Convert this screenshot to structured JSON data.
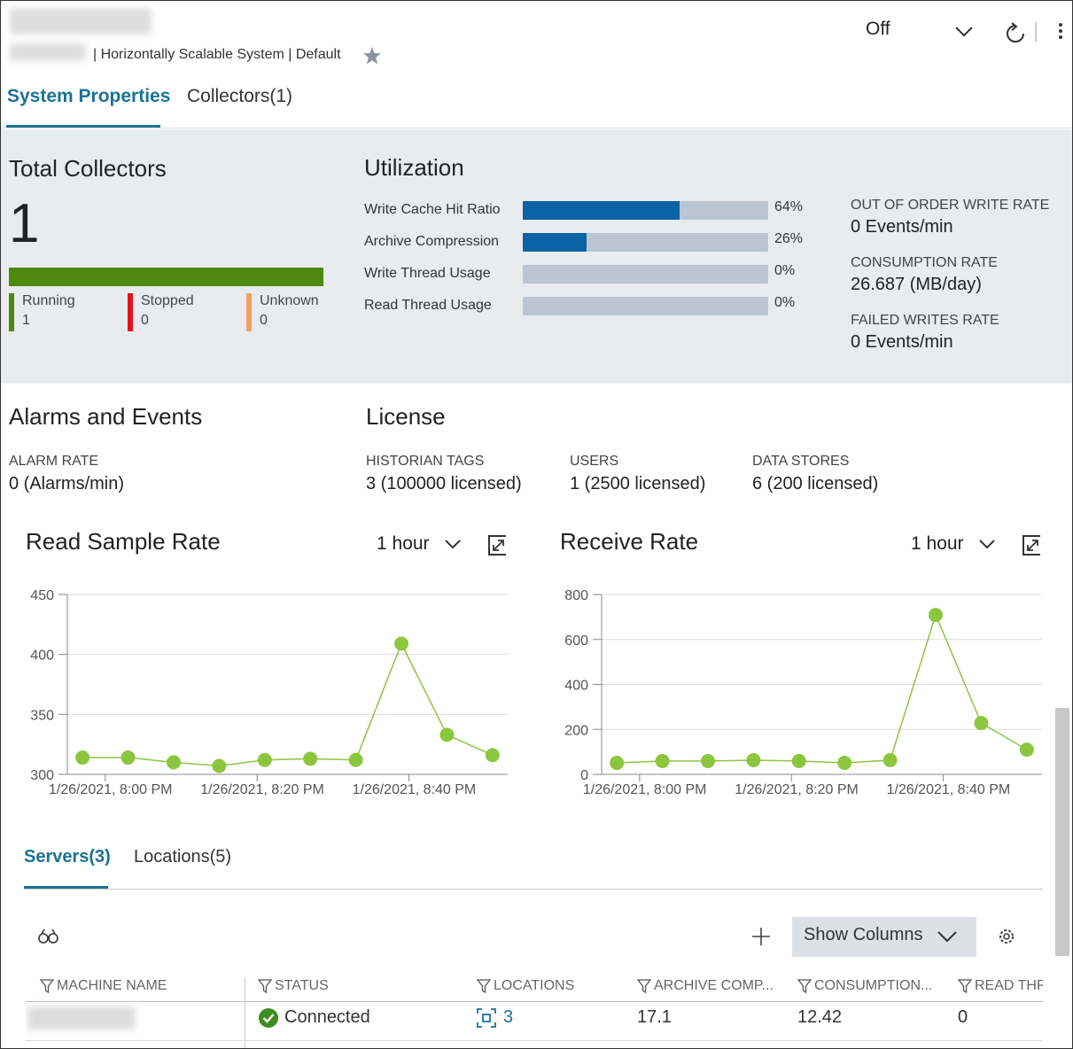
{
  "header": {
    "subtitle": "| Horizontally Scalable System | Default",
    "mode": "Off"
  },
  "tabs": [
    "System Properties",
    "Collectors(1)"
  ],
  "total_collectors": {
    "title": "Total Collectors",
    "count": 1,
    "color": "#4f8a10",
    "statuses": [
      {
        "name": "Running",
        "value": 1,
        "color": "#4f8a10"
      },
      {
        "name": "Stopped",
        "value": 0,
        "color": "#e0141e"
      },
      {
        "name": "Unknown",
        "value": 0,
        "color": "#f5a05a"
      }
    ]
  },
  "utilization": {
    "title": "Utilization",
    "color": "#0b62a4",
    "bars": [
      {
        "name": "Write Cache Hit Ratio",
        "value": 64,
        "value_label": "64%"
      },
      {
        "name": "Archive Compression",
        "value": 26,
        "value_label": "26%"
      },
      {
        "name": "Write Thread Usage",
        "value": 0,
        "value_label": "0%"
      },
      {
        "name": "Read Thread Usage",
        "value": 0,
        "value_label": "0%"
      }
    ]
  },
  "rates": [
    {
      "label": "OUT OF ORDER WRITE RATE",
      "value": "0 Events/min"
    },
    {
      "label": "CONSUMPTION RATE",
      "value": "26.687 (MB/day)"
    },
    {
      "label": "FAILED WRITES RATE",
      "value": "0 Events/min"
    }
  ],
  "alarms": {
    "title": "Alarms and Events",
    "items": [
      {
        "label": "ALARM RATE",
        "value": "0 (Alarms/min)"
      }
    ]
  },
  "license": {
    "title": "License",
    "items": [
      {
        "label": "HISTORIAN TAGS",
        "value": "3 (100000 licensed)"
      },
      {
        "label": "USERS",
        "value": "1 (2500 licensed)"
      },
      {
        "label": "DATA STORES",
        "value": "6 (200 licensed)"
      }
    ]
  },
  "chart_data": [
    {
      "type": "line",
      "title": "Read Sample Rate",
      "range": "1 hour",
      "x": [
        "2021-01-26T19:57",
        "2021-01-26T20:03",
        "2021-01-26T20:09",
        "2021-01-26T20:15",
        "2021-01-26T20:21",
        "2021-01-26T20:27",
        "2021-01-26T20:33",
        "2021-01-26T20:39",
        "2021-01-26T20:45",
        "2021-01-26T20:51"
      ],
      "series": [
        {
          "color": "#8cc63f",
          "values": [
            314,
            314,
            310,
            307,
            312,
            313,
            312,
            409,
            333,
            316
          ]
        }
      ],
      "xlim": [
        "2021-01-26T19:55",
        "2021-01-26T20:53"
      ],
      "xticks": [
        {
          "value": "2021-01-26T20:00",
          "label": "1/26/2021, 8:00 PM"
        },
        {
          "value": "2021-01-26T20:20",
          "label": "1/26/2021, 8:20 PM"
        },
        {
          "value": "2021-01-26T20:40",
          "label": "1/26/2021, 8:40 PM"
        }
      ],
      "ylim": [
        300,
        450
      ],
      "yticks": [
        300,
        350,
        400,
        450
      ],
      "grid": true
    },
    {
      "type": "line",
      "title": "Receive Rate",
      "range": "1 hour",
      "x": [
        "2021-01-26T19:57",
        "2021-01-26T20:03",
        "2021-01-26T20:09",
        "2021-01-26T20:15",
        "2021-01-26T20:21",
        "2021-01-26T20:27",
        "2021-01-26T20:33",
        "2021-01-26T20:39",
        "2021-01-26T20:45",
        "2021-01-26T20:51"
      ],
      "series": [
        {
          "color": "#8cc63f",
          "values": [
            51,
            59,
            59,
            63,
            59,
            51,
            63,
            709,
            228,
            110
          ]
        }
      ],
      "xlim": [
        "2021-01-26T19:55",
        "2021-01-26T20:53"
      ],
      "xticks": [
        {
          "value": "2021-01-26T20:00",
          "label": "1/26/2021, 8:00 PM"
        },
        {
          "value": "2021-01-26T20:20",
          "label": "1/26/2021, 8:20 PM"
        },
        {
          "value": "2021-01-26T20:40",
          "label": "1/26/2021, 8:40 PM"
        }
      ],
      "ylim": [
        0,
        800
      ],
      "yticks": [
        0,
        200,
        400,
        600,
        800
      ],
      "grid": true
    }
  ],
  "servers": {
    "tabs": [
      "Servers(3)",
      "Locations(5)"
    ],
    "show_columns": "Show Columns",
    "columns": [
      "MACHINE NAME",
      "STATUS",
      "LOCATIONS",
      "ARCHIVE COMP...",
      "CONSUMPTION...",
      "READ THRI"
    ],
    "rows": [
      [
        "Connected",
        3,
        17.1,
        12.42,
        0
      ]
    ]
  }
}
